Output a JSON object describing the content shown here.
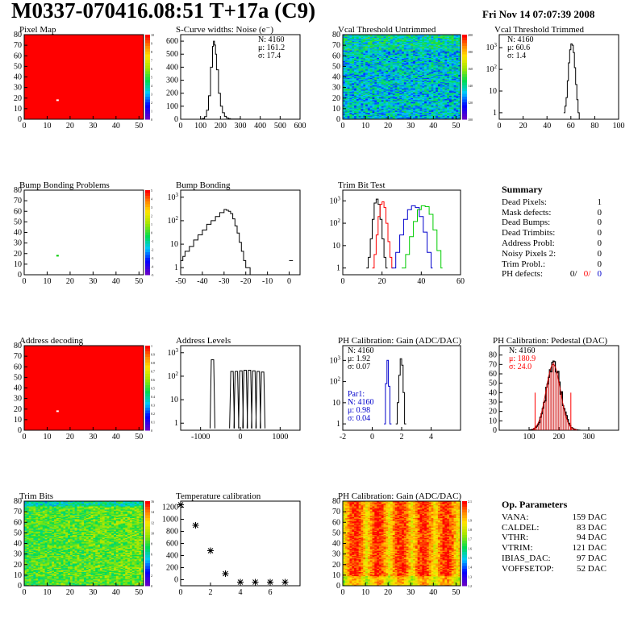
{
  "header": {
    "title": "M0337-070416.08:51 T+17a (C9)",
    "date": "Fri Nov 14 07:07:39 2008"
  },
  "colors": {
    "axis": "#000000",
    "red_series": "#ff0000",
    "blue_series": "#0000cc",
    "green_series": "#00cc00",
    "map_fill": "#ff0000",
    "gauss_fit": "#cc0000"
  },
  "chart_data": [
    {
      "id": "pixel-map",
      "type": "heatmap",
      "title": "Pixel Map",
      "xlim": [
        0,
        52
      ],
      "ylim": [
        0,
        80
      ],
      "xticks": [
        0,
        10,
        20,
        30,
        40,
        50
      ],
      "yticks": [
        0,
        10,
        20,
        30,
        40,
        50,
        60,
        70,
        80
      ],
      "fill": "uniform",
      "palette_ticks": [
        "10",
        "9",
        "8",
        "7",
        "6",
        "5",
        "4",
        "3",
        "2",
        "1",
        "0"
      ],
      "cells": [
        {
          "x": 14,
          "y": 18,
          "value": 0
        }
      ]
    },
    {
      "id": "noise",
      "type": "line",
      "title": "S-Curve widths: Noise (e⁻)",
      "xlim": [
        0,
        600
      ],
      "ylim": [
        0,
        650
      ],
      "xticks": [
        0,
        100,
        200,
        300,
        400,
        500,
        600
      ],
      "yticks": [
        0,
        100,
        200,
        300,
        400,
        500,
        600
      ],
      "stats": [
        "N: 4160",
        "μ: 161.2",
        "σ: 17.4"
      ],
      "series": [
        {
          "x": [
            80,
            100,
            110,
            120,
            130,
            140,
            150,
            160,
            165,
            170,
            175,
            180,
            190,
            200,
            210,
            220,
            230,
            240,
            250,
            270,
            300
          ],
          "y": [
            0,
            2,
            6,
            20,
            70,
            180,
            400,
            560,
            600,
            570,
            500,
            380,
            200,
            100,
            50,
            22,
            10,
            5,
            2,
            1,
            0
          ]
        }
      ]
    },
    {
      "id": "vcal-untrimmed",
      "type": "heatmap",
      "title": "Vcal Threshold Untrimmed",
      "xlim": [
        0,
        52
      ],
      "ylim": [
        0,
        80
      ],
      "xticks": [
        0,
        10,
        20,
        30,
        40,
        50
      ],
      "yticks": [
        0,
        10,
        20,
        30,
        40,
        50,
        60,
        70,
        80
      ],
      "fill": "noise-blue",
      "palette_ticks": [
        "200",
        "180",
        "160",
        "140",
        "120",
        "100"
      ]
    },
    {
      "id": "vcal-trimmed",
      "type": "line",
      "log": true,
      "title": "Vcal Threshold Trimmed",
      "xlim": [
        0,
        100
      ],
      "ylim": [
        0.5,
        4000
      ],
      "xticks": [
        0,
        20,
        40,
        60,
        80,
        100
      ],
      "yticks": [
        1,
        10,
        100,
        1000
      ],
      "stats": [
        "N: 4160",
        "μ: 60.6",
        "σ: 1.4"
      ],
      "series": [
        {
          "x": [
            54,
            55,
            56,
            57,
            58,
            59,
            60,
            61,
            62,
            63,
            64,
            65,
            66,
            67
          ],
          "y": [
            1,
            2,
            5,
            30,
            200,
            800,
            1500,
            1300,
            600,
            120,
            20,
            4,
            1,
            0.5
          ]
        }
      ]
    },
    {
      "id": "bump-problems",
      "type": "heatmap",
      "title": "Bump Bonding Problems",
      "xlim": [
        0,
        52
      ],
      "ylim": [
        0,
        80
      ],
      "xticks": [
        0,
        10,
        20,
        30,
        40,
        50
      ],
      "yticks": [
        0,
        10,
        20,
        30,
        40,
        50,
        60,
        70,
        80
      ],
      "fill": "none",
      "palette_ticks": [
        "5",
        "4",
        "3",
        "2",
        "1",
        "0",
        "-1",
        "-2",
        "-3",
        "-4",
        "-5"
      ],
      "cells": [
        {
          "x": 14,
          "y": 18,
          "value": 1
        }
      ]
    },
    {
      "id": "bump-bonding",
      "type": "line",
      "log": true,
      "title": "Bump Bonding",
      "xlim": [
        -50,
        5
      ],
      "ylim": [
        0.5,
        2000
      ],
      "xticks": [
        -50,
        -40,
        -30,
        -20,
        -10,
        0
      ],
      "yticks": [
        1,
        10,
        100,
        1000
      ],
      "series": [
        {
          "x": [
            -50,
            -49,
            -48,
            -46,
            -44,
            -42,
            -40,
            -38,
            -36,
            -34,
            -32,
            -30,
            -29,
            -28,
            -27,
            -26,
            -25,
            -24,
            -23,
            -22,
            -21,
            -20,
            -19,
            -18,
            -17
          ],
          "y": [
            2,
            3,
            5,
            8,
            15,
            25,
            40,
            70,
            100,
            150,
            220,
            300,
            280,
            250,
            200,
            120,
            60,
            30,
            12,
            5,
            2,
            1,
            1,
            0.5,
            0.5
          ]
        },
        {
          "x": [
            0,
            1
          ],
          "y": [
            2,
            2
          ]
        }
      ]
    },
    {
      "id": "trim-bits",
      "type": "line",
      "log": true,
      "title": "Trim Bit Test",
      "xlim": [
        0,
        60
      ],
      "ylim": [
        0.5,
        3000
      ],
      "xticks": [
        0,
        20,
        40,
        60
      ],
      "yticks": [
        1,
        10,
        100,
        1000
      ],
      "series": [
        {
          "name": "trim-7",
          "color": "#000000",
          "x": [
            12,
            13,
            14,
            15,
            16,
            17,
            18,
            19,
            20,
            21,
            22
          ],
          "y": [
            1,
            3,
            20,
            150,
            800,
            1200,
            700,
            150,
            20,
            3,
            1
          ]
        },
        {
          "name": "trim-11",
          "color": "#ff0000",
          "x": [
            15,
            16,
            17,
            18,
            19,
            20,
            21,
            22,
            23,
            24,
            25
          ],
          "y": [
            1,
            4,
            30,
            200,
            700,
            900,
            500,
            100,
            15,
            3,
            1
          ]
        },
        {
          "name": "trim-13",
          "color": "#0000cc",
          "x": [
            25,
            27,
            29,
            31,
            33,
            35,
            37,
            39,
            41,
            43,
            45
          ],
          "y": [
            1,
            5,
            30,
            150,
            400,
            600,
            500,
            200,
            40,
            5,
            1
          ]
        },
        {
          "name": "trim-14",
          "color": "#00cc00",
          "x": [
            30,
            32,
            34,
            36,
            38,
            40,
            42,
            44,
            46,
            48,
            50
          ],
          "y": [
            1,
            4,
            25,
            120,
            400,
            600,
            550,
            250,
            50,
            6,
            1
          ]
        }
      ]
    },
    {
      "id": "address-decoding",
      "type": "heatmap",
      "title": "Address decoding",
      "xlim": [
        0,
        52
      ],
      "ylim": [
        0,
        80
      ],
      "xticks": [
        0,
        10,
        20,
        30,
        40,
        50
      ],
      "yticks": [
        0,
        10,
        20,
        30,
        40,
        50,
        60,
        70,
        80
      ],
      "fill": "uniform",
      "palette_ticks": [
        "1",
        "0.9",
        "0.8",
        "0.7",
        "0.6",
        "0.5",
        "0.4",
        "0.3",
        "0.2",
        "0.1",
        "0"
      ],
      "cells": [
        {
          "x": 14,
          "y": 18,
          "value": 0
        }
      ]
    },
    {
      "id": "address-levels",
      "type": "line",
      "log": true,
      "title": "Address Levels",
      "xlim": [
        -1500,
        1500
      ],
      "ylim": [
        0.5,
        2000
      ],
      "xticks": [
        -1000,
        0,
        1000
      ],
      "yticks": [
        1,
        10,
        100,
        1000
      ],
      "peaks": [
        {
          "x": -700,
          "h": 500
        },
        {
          "x": -210,
          "h": 160
        },
        {
          "x": -100,
          "h": 160
        },
        {
          "x": 15,
          "h": 170
        },
        {
          "x": 120,
          "h": 180
        },
        {
          "x": 230,
          "h": 180
        },
        {
          "x": 340,
          "h": 170
        },
        {
          "x": 450,
          "h": 160
        },
        {
          "x": 560,
          "h": 150
        }
      ]
    },
    {
      "id": "ph-gain",
      "type": "line",
      "log": true,
      "title": "PH Calibration: Gain (ADC/DAC)",
      "xlim": [
        -2,
        6
      ],
      "ylim": [
        0.5,
        5000
      ],
      "xticks": [
        -2,
        0,
        2,
        4
      ],
      "yticks": [
        1,
        10,
        100,
        1000
      ],
      "stats": [
        "N: 4160",
        "μ: 1.92",
        "σ: 0.07"
      ],
      "stats2": [
        "Par1:",
        "N: 4160",
        "μ: 0.98",
        "σ: 0.04"
      ],
      "series": [
        {
          "name": "gain",
          "color": "#000000",
          "x": [
            1.6,
            1.7,
            1.8,
            1.9,
            2.0,
            2.1,
            2.2
          ],
          "y": [
            1,
            10,
            200,
            1200,
            600,
            30,
            1
          ]
        },
        {
          "name": "par1",
          "color": "#0000cc",
          "x": [
            0.8,
            0.9,
            1.0,
            1.1,
            1.2
          ],
          "y": [
            1,
            80,
            1000,
            60,
            1
          ]
        }
      ]
    },
    {
      "id": "ph-pedestal",
      "type": "line",
      "title": "PH Calibration: Pedestal (DAC)",
      "xlim": [
        0,
        400
      ],
      "ylim": [
        0,
        90
      ],
      "xticks": [
        100,
        200,
        300
      ],
      "yticks": [
        0,
        10,
        20,
        30,
        40,
        50,
        60,
        70,
        80
      ],
      "stats": [
        "N: 4160",
        "μ: 180.9",
        "σ: 24.0"
      ],
      "fit": {
        "mu": 180.9,
        "sigma": 24.0,
        "amp": 70
      },
      "markers": [
        120,
        240
      ]
    },
    {
      "id": "trim-bits-map",
      "type": "heatmap",
      "title": "Trim Bits",
      "xlim": [
        0,
        52
      ],
      "ylim": [
        0,
        80
      ],
      "xticks": [
        0,
        10,
        20,
        30,
        40,
        50
      ],
      "yticks": [
        0,
        10,
        20,
        30,
        40,
        50,
        60,
        70,
        80
      ],
      "fill": "noise-green",
      "palette_ticks": [
        "16",
        "14",
        "12",
        "10",
        "8",
        "6",
        "4",
        "2",
        "0"
      ]
    },
    {
      "id": "temperature",
      "type": "scatter",
      "title": "Temperature calibration",
      "xlim": [
        0,
        8
      ],
      "ylim": [
        -100,
        1300
      ],
      "xticks": [
        0,
        2,
        4,
        6
      ],
      "yticks": [
        0,
        200,
        400,
        600,
        800,
        1000,
        1200
      ],
      "x": [
        0,
        1,
        2,
        3,
        4,
        5,
        6,
        7
      ],
      "y": [
        1240,
        900,
        480,
        100,
        -40,
        -40,
        -40,
        -40
      ]
    },
    {
      "id": "ph-gain-map",
      "type": "heatmap",
      "title": "PH Calibration: Gain (ADC/DAC)",
      "xlim": [
        0,
        52
      ],
      "ylim": [
        0,
        80
      ],
      "xticks": [
        0,
        10,
        20,
        30,
        40,
        50
      ],
      "yticks": [
        0,
        10,
        20,
        30,
        40,
        50,
        60,
        70,
        80
      ],
      "fill": "noise-red",
      "palette_ticks": [
        "2.1",
        "2",
        "1.9",
        "1.8",
        "1.7",
        "1.6",
        "1.5",
        "1.4",
        "1.3",
        "1.2"
      ]
    }
  ],
  "summary": {
    "heading": "Summary",
    "rows": [
      {
        "label": "Dead Pixels:",
        "value": "1"
      },
      {
        "label": "Mask defects:",
        "value": "0"
      },
      {
        "label": "Dead Bumps:",
        "value": "0"
      },
      {
        "label": "Dead Trimbits:",
        "value": "0"
      },
      {
        "label": "Address Probl:",
        "value": "0"
      },
      {
        "label": "Noisy Pixels 2:",
        "value": "0"
      },
      {
        "label": "Trim Probl.:",
        "value": "0"
      }
    ],
    "ph_label": "PH defects:",
    "ph_values": [
      "0/",
      "0/",
      "0"
    ]
  },
  "op_parameters": {
    "heading": "Op. Parameters",
    "rows": [
      {
        "label": "VANA:",
        "value": "159 DAC"
      },
      {
        "label": "CALDEL:",
        "value": "83 DAC"
      },
      {
        "label": "VTHR:",
        "value": "94 DAC"
      },
      {
        "label": "VTRIM:",
        "value": "121 DAC"
      },
      {
        "label": "IBIAS_DAC:",
        "value": "97 DAC"
      },
      {
        "label": "VOFFSETOP:",
        "value": "52 DAC"
      }
    ]
  }
}
